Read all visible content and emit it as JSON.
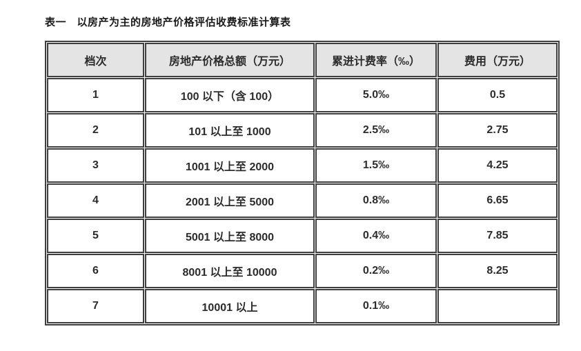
{
  "page": {
    "title": "表一　以房产为主的房地产价格评估收费标准计算表"
  },
  "colors": {
    "border": "#3f3f3f",
    "header_background": "#e4e4e4",
    "text": "#2b2b2b"
  },
  "table": {
    "headers": {
      "grade": "档次",
      "total": "房地产价格总额（万元）",
      "rate": "累进计费率（‰）",
      "fee": "费用（万元）"
    },
    "rows": [
      {
        "grade": "1",
        "total": "100 以下（含 100）",
        "rate": "5.0‰",
        "fee": "0.5"
      },
      {
        "grade": "2",
        "total": "101 以上至 1000",
        "rate": "2.5‰",
        "fee": "2.75"
      },
      {
        "grade": "3",
        "total": "1001 以上至 2000",
        "rate": "1.5‰",
        "fee": "4.25"
      },
      {
        "grade": "4",
        "total": "2001 以上至 5000",
        "rate": "0.8‰",
        "fee": "6.65"
      },
      {
        "grade": "5",
        "total": "5001 以上至 8000",
        "rate": "0.4‰",
        "fee": "7.85"
      },
      {
        "grade": "6",
        "total": "8001 以上至 10000",
        "rate": "0.2‰",
        "fee": "8.25"
      },
      {
        "grade": "7",
        "total": "10001 以上",
        "rate": "0.1‰",
        "fee": ""
      }
    ]
  }
}
